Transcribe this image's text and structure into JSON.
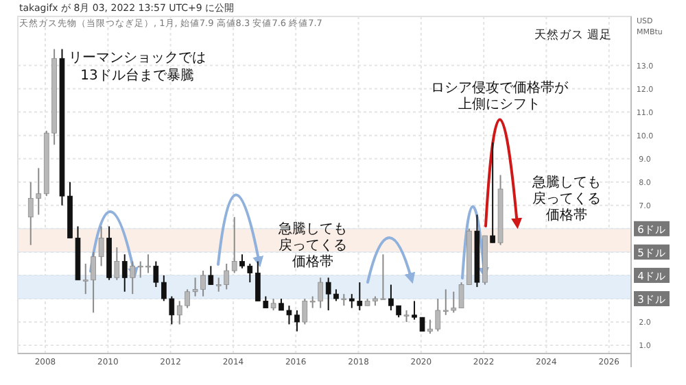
{
  "chart_data": {
    "type": "candlestick",
    "title": "天然ガス 週足",
    "ylabel": "USD MMBtu",
    "annotations": [
      "takagifx が 8月 03, 2022 13:57 UTC+9 に公開",
      "天然ガス先物（当限つなぎ足）, 1月, 始値7.9 高値8.3 安値7.6 終値7.7",
      "リーマンショックでは",
      "13ドル台まで暴騰",
      "急騰しても",
      "戻ってくる",
      "価格帯",
      "ロシア侵攻で価格帯が",
      "上側にシフト",
      "急騰しても",
      "戻ってくる",
      "価格帯"
    ],
    "x": [
      "2007-07",
      "2007-10",
      "2008-01",
      "2008-04",
      "2008-07",
      "2008-10",
      "2009-01",
      "2009-04",
      "2009-07",
      "2009-10",
      "2010-01",
      "2010-04",
      "2010-07",
      "2010-10",
      "2011-01",
      "2011-04",
      "2011-07",
      "2011-10",
      "2012-01",
      "2012-04",
      "2012-07",
      "2012-10",
      "2013-01",
      "2013-04",
      "2013-07",
      "2013-10",
      "2014-01",
      "2014-04",
      "2014-07",
      "2014-10",
      "2015-01",
      "2015-04",
      "2015-07",
      "2015-10",
      "2016-01",
      "2016-04",
      "2016-07",
      "2016-10",
      "2017-01",
      "2017-04",
      "2017-07",
      "2017-10",
      "2018-01",
      "2018-04",
      "2018-07",
      "2018-10",
      "2019-01",
      "2019-04",
      "2019-07",
      "2019-10",
      "2020-01",
      "2020-04",
      "2020-07",
      "2020-10",
      "2021-01",
      "2021-04",
      "2021-07",
      "2021-10",
      "2022-01",
      "2022-04",
      "2022-07"
    ],
    "ohlc": [
      [
        6.5,
        8.0,
        5.3,
        7.3
      ],
      [
        7.3,
        8.6,
        6.6,
        7.5
      ],
      [
        7.5,
        10.2,
        7.4,
        10.1
      ],
      [
        10.1,
        13.7,
        9.6,
        13.3
      ],
      [
        13.3,
        13.7,
        7.0,
        7.4
      ],
      [
        7.4,
        8.0,
        5.6,
        5.6
      ],
      [
        5.6,
        6.1,
        3.8,
        3.8
      ],
      [
        3.8,
        4.5,
        3.2,
        3.8
      ],
      [
        3.8,
        5.0,
        2.4,
        4.8
      ],
      [
        4.8,
        6.1,
        4.4,
        5.6
      ],
      [
        5.6,
        6.1,
        3.8,
        3.9
      ],
      [
        3.9,
        5.2,
        3.8,
        4.6
      ],
      [
        4.6,
        4.9,
        3.3,
        3.9
      ],
      [
        3.9,
        4.6,
        3.2,
        4.4
      ],
      [
        4.4,
        4.6,
        3.9,
        4.4
      ],
      [
        4.4,
        4.9,
        4.1,
        4.4
      ],
      [
        4.4,
        4.6,
        3.5,
        3.7
      ],
      [
        3.7,
        4.0,
        2.9,
        3.0
      ],
      [
        3.0,
        3.1,
        1.9,
        2.3
      ],
      [
        2.3,
        2.9,
        1.9,
        2.7
      ],
      [
        2.7,
        3.4,
        2.6,
        3.3
      ],
      [
        3.3,
        3.9,
        3.1,
        3.4
      ],
      [
        3.4,
        4.2,
        3.1,
        4.0
      ],
      [
        4.0,
        4.4,
        3.6,
        3.6
      ],
      [
        3.6,
        3.9,
        3.3,
        3.6
      ],
      [
        3.6,
        4.5,
        3.4,
        4.2
      ],
      [
        4.2,
        6.5,
        4.1,
        4.6
      ],
      [
        4.6,
        4.9,
        4.3,
        4.4
      ],
      [
        4.4,
        4.5,
        3.7,
        4.1
      ],
      [
        4.1,
        4.6,
        2.9,
        2.9
      ],
      [
        2.9,
        3.1,
        2.6,
        2.6
      ],
      [
        2.6,
        3.0,
        2.5,
        2.8
      ],
      [
        2.8,
        3.0,
        2.5,
        2.5
      ],
      [
        2.5,
        2.7,
        1.9,
        2.3
      ],
      [
        2.3,
        2.5,
        1.6,
        2.0
      ],
      [
        2.0,
        3.0,
        1.9,
        2.9
      ],
      [
        2.9,
        3.1,
        2.6,
        2.9
      ],
      [
        2.9,
        3.9,
        2.6,
        3.7
      ],
      [
        3.7,
        3.9,
        2.5,
        3.2
      ],
      [
        3.2,
        3.4,
        2.9,
        3.0
      ],
      [
        3.0,
        3.2,
        2.7,
        3.0
      ],
      [
        3.0,
        3.2,
        2.6,
        2.9
      ],
      [
        2.9,
        3.7,
        2.5,
        2.7
      ],
      [
        2.7,
        3.0,
        2.7,
        2.9
      ],
      [
        2.9,
        3.1,
        2.7,
        3.0
      ],
      [
        3.0,
        4.9,
        3.0,
        3.0
      ],
      [
        3.0,
        3.6,
        2.5,
        2.7
      ],
      [
        2.7,
        2.7,
        2.2,
        2.3
      ],
      [
        2.3,
        2.5,
        2.0,
        2.3
      ],
      [
        2.3,
        2.9,
        2.1,
        2.2
      ],
      [
        2.2,
        2.2,
        1.6,
        1.6
      ],
      [
        1.6,
        2.1,
        1.5,
        1.7
      ],
      [
        1.7,
        3.0,
        1.6,
        2.5
      ],
      [
        2.5,
        3.4,
        2.3,
        2.5
      ],
      [
        2.5,
        3.3,
        2.4,
        2.6
      ],
      [
        2.6,
        3.7,
        2.6,
        3.6
      ],
      [
        3.6,
        6.0,
        3.6,
        5.9
      ],
      [
        5.9,
        6.6,
        3.5,
        3.7
      ],
      [
        3.7,
        5.7,
        3.6,
        5.7
      ],
      [
        5.7,
        9.7,
        5.4,
        5.4
      ],
      [
        5.4,
        8.3,
        5.3,
        7.7
      ]
    ],
    "xlim": [
      "2007-02",
      "2026-08"
    ],
    "xticks": [
      "2008",
      "2010",
      "2012",
      "2014",
      "2016",
      "2018",
      "2020",
      "2022",
      "2024",
      "2026"
    ],
    "ylim": [
      0.65,
      15.1
    ],
    "yticks": [
      {
        "value": 1,
        "label": "1.0"
      },
      {
        "value": 2,
        "label": "2.0"
      },
      {
        "value": 3,
        "label": "3ドル"
      },
      {
        "value": 4,
        "label": "4ドル"
      },
      {
        "value": 5,
        "label": "5ドル"
      },
      {
        "value": 6,
        "label": "6ドル"
      },
      {
        "value": 7,
        "label": "7.0"
      },
      {
        "value": 8,
        "label": "8.0"
      },
      {
        "value": 9,
        "label": "9.0"
      },
      {
        "value": 10,
        "label": "10.0"
      },
      {
        "value": 11,
        "label": "11.0"
      },
      {
        "value": 12,
        "label": "12.0"
      },
      {
        "value": 13,
        "label": "13.0"
      }
    ],
    "bands": [
      {
        "axis": "y",
        "from": 3,
        "to": 4,
        "color": "#e3eef8"
      },
      {
        "axis": "y",
        "from": 5,
        "to": 6,
        "color": "#fbeee6"
      }
    ],
    "grid": true
  }
}
